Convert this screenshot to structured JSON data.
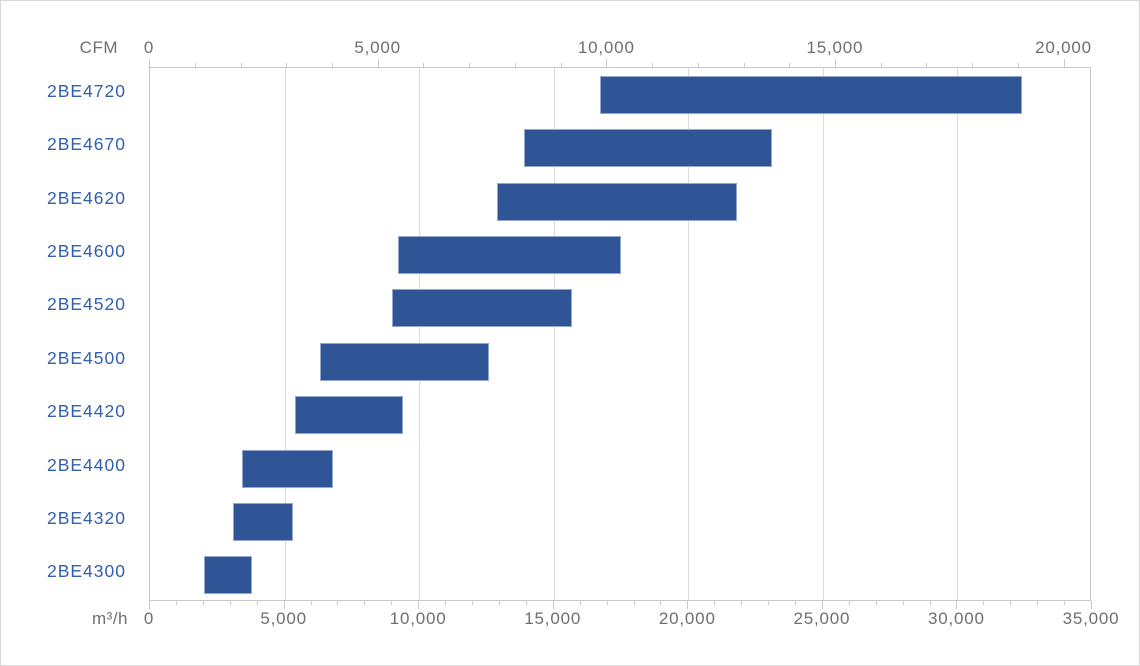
{
  "chart_data": {
    "type": "bar",
    "subtype": "horizontal-range-bars",
    "description": "Capacity ranges of 2BE4 series models, dual flow-unit axes",
    "top_axis": {
      "unit": "CFM",
      "min": 0,
      "max": 20000,
      "major_step": 5000,
      "minor_step": 1000,
      "major_tick_labels": [
        "0",
        "5,000",
        "10,000",
        "15,000",
        "20,000"
      ],
      "unit_conversion_to_bottom": 1.699
    },
    "bottom_axis": {
      "unit": "m³/h",
      "min": 0,
      "max": 35000,
      "major_step": 5000,
      "minor_step": 1000,
      "major_tick_labels": [
        "0",
        "5,000",
        "10,000",
        "15,000",
        "20,000",
        "25,000",
        "30,000",
        "35,000"
      ]
    },
    "series": [
      {
        "model": "2BE4720",
        "min_m3h": 16700,
        "max_m3h": 32400
      },
      {
        "model": "2BE4670",
        "min_m3h": 13900,
        "max_m3h": 23100
      },
      {
        "model": "2BE4620",
        "min_m3h": 12900,
        "max_m3h": 21800
      },
      {
        "model": "2BE4600",
        "min_m3h": 9200,
        "max_m3h": 17500
      },
      {
        "model": "2BE4520",
        "min_m3h": 9000,
        "max_m3h": 15700
      },
      {
        "model": "2BE4500",
        "min_m3h": 6300,
        "max_m3h": 12600
      },
      {
        "model": "2BE4420",
        "min_m3h": 5400,
        "max_m3h": 9400
      },
      {
        "model": "2BE4400",
        "min_m3h": 3400,
        "max_m3h": 6800
      },
      {
        "model": "2BE4320",
        "min_m3h": 3100,
        "max_m3h": 5300
      },
      {
        "model": "2BE4300",
        "min_m3h": 2000,
        "max_m3h": 3800
      }
    ],
    "legend": null,
    "grid": "vertical-majors-of-bottom-axis",
    "colors": {
      "bar_fill": "#2f5596",
      "bar_border": "#93a7d0",
      "category_label": "#3060ae",
      "tick_label": "#6f6f6f",
      "axis_line": "#c9c9c9",
      "gridline": "#dcdcdc",
      "background": "#ffffff"
    }
  }
}
